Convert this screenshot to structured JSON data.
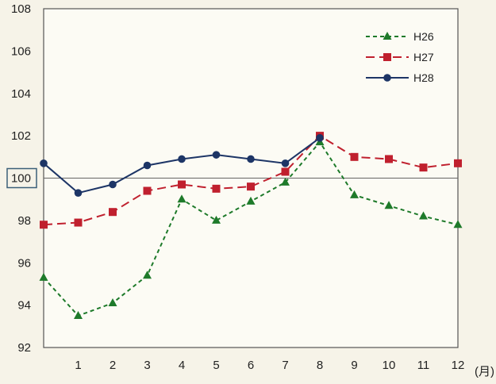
{
  "chart_data": {
    "type": "line",
    "title": "",
    "xlabel": "(月)",
    "ylabel": "",
    "x": [
      0,
      1,
      2,
      3,
      4,
      5,
      6,
      7,
      8,
      9,
      10,
      11,
      12
    ],
    "xtick_labels": [
      "1",
      "2",
      "3",
      "4",
      "5",
      "6",
      "7",
      "8",
      "9",
      "10",
      "11",
      "12"
    ],
    "ylim": [
      92,
      108
    ],
    "yticks": [
      92,
      94,
      96,
      98,
      100,
      102,
      104,
      106,
      108
    ],
    "reference_line": 100,
    "grid": false,
    "legend_position": "top-right",
    "series": [
      {
        "name": "H26",
        "color": "#1e7a2a",
        "marker": "triangle",
        "dash": "dashed",
        "values": [
          95.3,
          93.5,
          94.1,
          95.4,
          99.0,
          98.0,
          98.9,
          99.8,
          101.7,
          99.2,
          98.7,
          98.2,
          97.8
        ]
      },
      {
        "name": "H27",
        "color": "#c0202e",
        "marker": "square",
        "dash": "long-dashed",
        "values": [
          97.8,
          97.9,
          98.4,
          99.4,
          99.7,
          99.5,
          99.6,
          100.3,
          102.0,
          101.0,
          100.9,
          100.5,
          100.7
        ]
      },
      {
        "name": "H28",
        "color": "#1d3566",
        "marker": "circle",
        "dash": "solid",
        "values": [
          100.7,
          99.3,
          99.7,
          100.6,
          100.9,
          101.1,
          100.9,
          100.7,
          101.9,
          null,
          null,
          null,
          null
        ]
      }
    ]
  }
}
